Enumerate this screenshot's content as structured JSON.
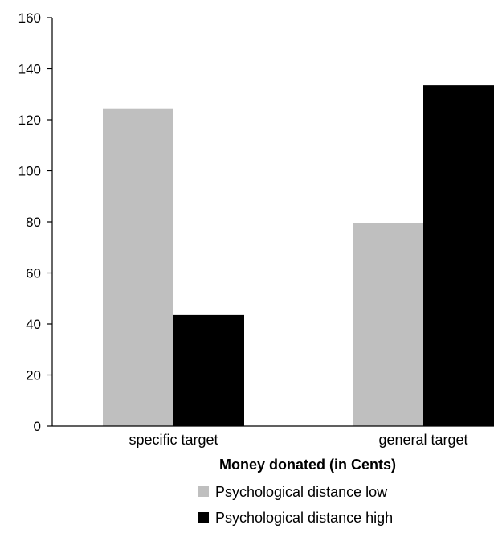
{
  "chart_data": {
    "type": "bar",
    "title": "",
    "xlabel": "Money donated (in Cents)",
    "ylabel": "",
    "ylim": [
      0,
      160
    ],
    "yticks": [
      0,
      20,
      40,
      60,
      80,
      100,
      120,
      140,
      160
    ],
    "categories": [
      "specific target",
      "general target"
    ],
    "series": [
      {
        "name": "Psychological distance low",
        "color": "#bfbfbf",
        "values": [
          124.5,
          79.5
        ]
      },
      {
        "name": "Psychological distance high",
        "color": "#000000",
        "values": [
          43.5,
          133.5
        ]
      }
    ],
    "grid": false,
    "legend_position": "bottom"
  }
}
